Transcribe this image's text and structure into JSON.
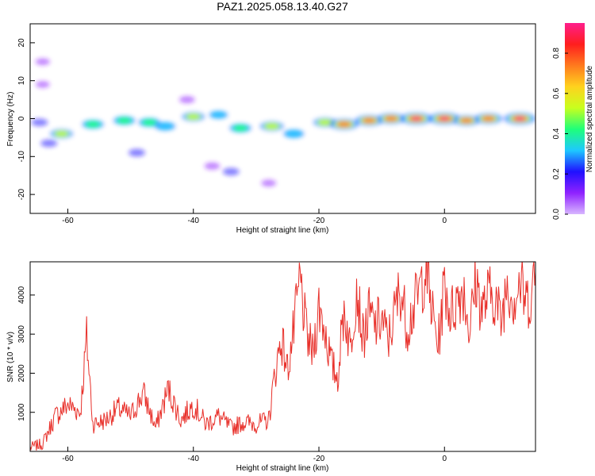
{
  "title": "PAZ1.2025.058.13.40.G27",
  "colors": {
    "snr_line": "#e8302a",
    "colormap": [
      "#d8b6ff",
      "#8f22ff",
      "#1f10ff",
      "#1ec8ff",
      "#1eff7a",
      "#c8ff1e",
      "#ffd21e",
      "#ff7a1e",
      "#ff1e1e",
      "#ff1e8c"
    ]
  },
  "chart_data": [
    {
      "type": "heatmap",
      "title": "PAZ1.2025.058.13.40.G27",
      "xlabel": "Height of straight line (km)",
      "ylabel": "Frequency (Hz)",
      "xlim": [
        -66,
        14.5
      ],
      "ylim": [
        -25,
        25
      ],
      "xticks": [
        -60,
        -40,
        -20,
        0
      ],
      "yticks": [
        -20,
        -10,
        0,
        10,
        20
      ],
      "colorbar": {
        "label": "Normalized spectral amplitude",
        "range": [
          0,
          0.95
        ],
        "ticks": [
          0.0,
          0.2,
          0.4,
          0.6,
          0.8
        ]
      },
      "blobs": [
        {
          "x": -61,
          "y": -4,
          "amp": 0.5
        },
        {
          "x": -56,
          "y": -1.5,
          "amp": 0.45
        },
        {
          "x": -51,
          "y": -0.5,
          "amp": 0.45
        },
        {
          "x": -47,
          "y": -1,
          "amp": 0.45
        },
        {
          "x": -44.5,
          "y": -2,
          "amp": 0.4
        },
        {
          "x": -40,
          "y": 0.5,
          "amp": 0.5
        },
        {
          "x": -36,
          "y": 1,
          "amp": 0.3
        },
        {
          "x": -32.5,
          "y": -2.5,
          "amp": 0.45
        },
        {
          "x": -27.5,
          "y": -2,
          "amp": 0.55
        },
        {
          "x": -24,
          "y": -4,
          "amp": 0.4
        },
        {
          "x": -19,
          "y": -1,
          "amp": 0.55
        },
        {
          "x": -16,
          "y": -1.5,
          "amp": 0.8
        },
        {
          "x": -12,
          "y": -0.5,
          "amp": 0.75
        },
        {
          "x": -8.5,
          "y": 0,
          "amp": 0.75
        },
        {
          "x": -4.5,
          "y": 0,
          "amp": 0.95
        },
        {
          "x": 0,
          "y": 0,
          "amp": 0.95
        },
        {
          "x": 3.5,
          "y": -0.5,
          "amp": 0.7
        },
        {
          "x": 7,
          "y": 0,
          "amp": 0.75
        },
        {
          "x": 12,
          "y": 0,
          "amp": 0.95
        },
        {
          "x": -49,
          "y": -9,
          "amp": 0.2
        },
        {
          "x": -37,
          "y": -12.5,
          "amp": 0.15
        },
        {
          "x": -34,
          "y": -14,
          "amp": 0.2
        },
        {
          "x": -28,
          "y": -17,
          "amp": 0.12
        },
        {
          "x": -64.5,
          "y": -1,
          "amp": 0.2
        },
        {
          "x": -64,
          "y": 15,
          "amp": 0.1
        },
        {
          "x": -64,
          "y": 9,
          "amp": 0.08
        },
        {
          "x": -41,
          "y": 5,
          "amp": 0.15
        },
        {
          "x": -63,
          "y": -6.5,
          "amp": 0.2
        }
      ]
    },
    {
      "type": "line",
      "xlabel": "Height of straight line (km)",
      "ylabel": "SNR (10 * v/v)",
      "xlim": [
        -66,
        14.5
      ],
      "ylim": [
        0,
        4850
      ],
      "xticks": [
        -60,
        -40,
        -20,
        0
      ],
      "yticks": [
        1000,
        2000,
        3000,
        4000
      ],
      "x": [
        -66,
        -64,
        -62,
        -60,
        -58,
        -57,
        -56,
        -54,
        -52,
        -50,
        -48,
        -46,
        -44,
        -42,
        -40,
        -38,
        -36,
        -34,
        -32,
        -30,
        -28,
        -27,
        -26,
        -25,
        -24,
        -23,
        -22,
        -21,
        -20,
        -19,
        -18,
        -17,
        -16,
        -15,
        -14,
        -13,
        -12,
        -11,
        -10,
        -9,
        -8,
        -7,
        -6,
        -5,
        -4,
        -3,
        -2,
        -1,
        0,
        1,
        2,
        3,
        4,
        5,
        6,
        7,
        8,
        9,
        10,
        11,
        12,
        13,
        14,
        14.5
      ],
      "y": [
        100,
        200,
        900,
        1200,
        1000,
        2900,
        700,
        800,
        1100,
        900,
        1500,
        600,
        1600,
        800,
        1200,
        700,
        900,
        600,
        750,
        700,
        800,
        2000,
        2900,
        2100,
        3100,
        4400,
        3000,
        2500,
        3700,
        3100,
        2200,
        1900,
        3700,
        2600,
        4300,
        2900,
        3500,
        3200,
        3400,
        2800,
        3500,
        4200,
        3200,
        3600,
        4100,
        4700,
        3600,
        2700,
        4300,
        3500,
        3900,
        4200,
        3100,
        4400,
        3600,
        4000,
        4000,
        3300,
        4400,
        3900,
        4300,
        3800,
        4100,
        4600
      ]
    }
  ]
}
